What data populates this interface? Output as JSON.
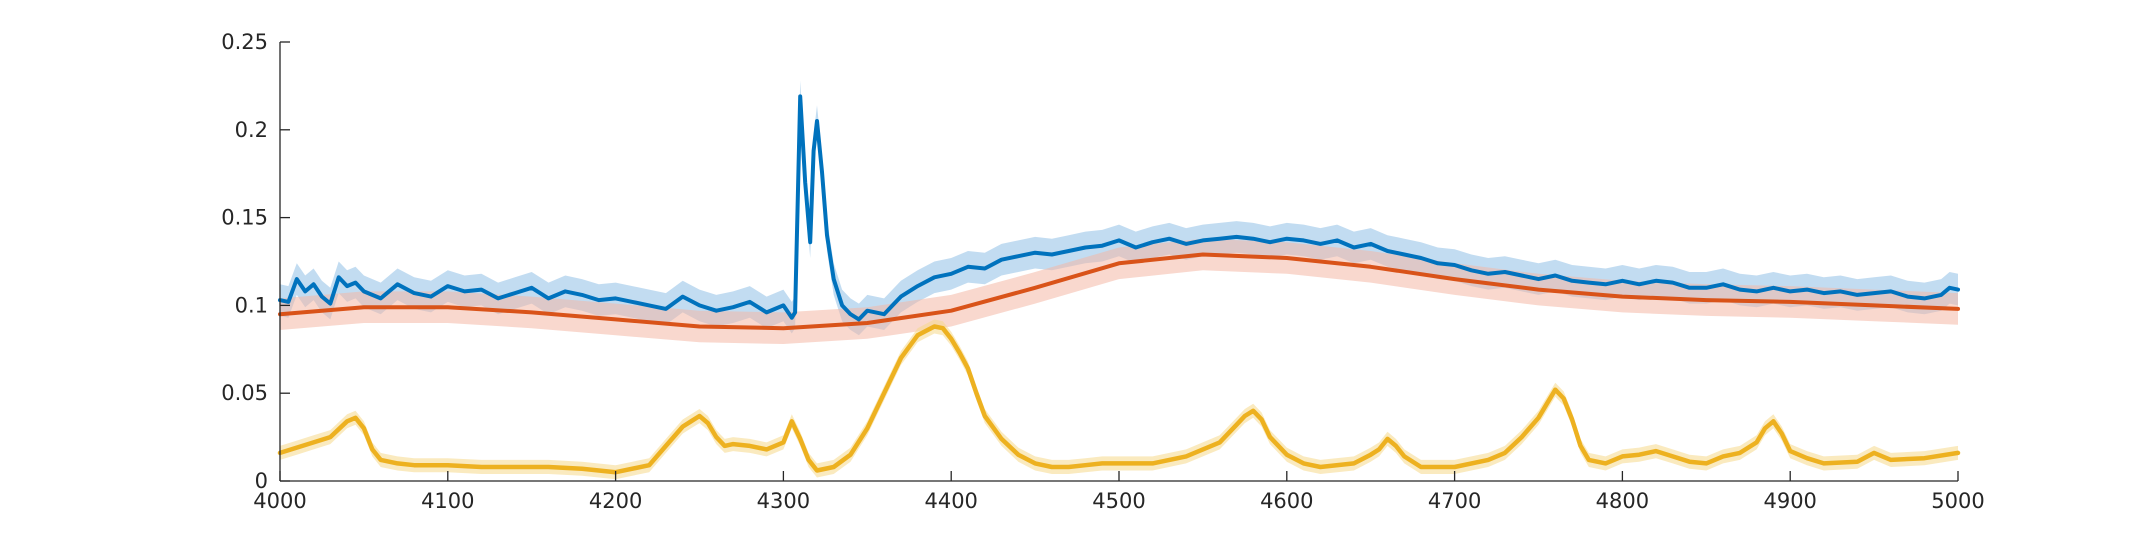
{
  "chart_data": {
    "type": "line",
    "title": "",
    "xlabel": "",
    "ylabel": "",
    "xlim": [
      4000,
      5000
    ],
    "ylim": [
      0,
      0.25
    ],
    "xticks": [
      "4000",
      "4100",
      "4200",
      "4300",
      "4400",
      "4500",
      "4600",
      "4700",
      "4800",
      "4900",
      "5000"
    ],
    "yticks": [
      "0",
      "0.05",
      "0.1",
      "0.15",
      "0.2",
      "0.25"
    ],
    "grid": false,
    "legend": "none",
    "series": [
      {
        "color": "#0072BD",
        "band_color": "#8FBFE6",
        "band_halfwidth": 0.009,
        "x": [
          4000,
          4005,
          4010,
          4015,
          4020,
          4025,
          4030,
          4035,
          4040,
          4045,
          4050,
          4060,
          4070,
          4080,
          4090,
          4100,
          4110,
          4120,
          4130,
          4140,
          4150,
          4160,
          4170,
          4180,
          4190,
          4200,
          4210,
          4220,
          4230,
          4240,
          4250,
          4260,
          4270,
          4280,
          4290,
          4300,
          4305,
          4307,
          4310,
          4313,
          4316,
          4318,
          4320,
          4323,
          4326,
          4330,
          4335,
          4340,
          4345,
          4350,
          4360,
          4370,
          4380,
          4390,
          4400,
          4410,
          4420,
          4430,
          4440,
          4450,
          4460,
          4470,
          4480,
          4490,
          4500,
          4510,
          4520,
          4530,
          4540,
          4550,
          4560,
          4570,
          4580,
          4590,
          4600,
          4610,
          4620,
          4630,
          4640,
          4650,
          4660,
          4670,
          4680,
          4690,
          4700,
          4710,
          4720,
          4730,
          4740,
          4750,
          4760,
          4770,
          4780,
          4790,
          4800,
          4810,
          4820,
          4830,
          4840,
          4850,
          4860,
          4870,
          4880,
          4890,
          4900,
          4910,
          4920,
          4930,
          4940,
          4950,
          4960,
          4970,
          4980,
          4990,
          4995,
          5000
        ],
        "y": [
          0.103,
          0.102,
          0.115,
          0.108,
          0.112,
          0.105,
          0.101,
          0.116,
          0.111,
          0.113,
          0.108,
          0.104,
          0.112,
          0.107,
          0.105,
          0.111,
          0.108,
          0.109,
          0.104,
          0.107,
          0.11,
          0.104,
          0.108,
          0.106,
          0.103,
          0.104,
          0.102,
          0.1,
          0.098,
          0.105,
          0.1,
          0.097,
          0.099,
          0.102,
          0.096,
          0.1,
          0.093,
          0.096,
          0.219,
          0.17,
          0.136,
          0.188,
          0.205,
          0.176,
          0.14,
          0.115,
          0.1,
          0.095,
          0.092,
          0.097,
          0.095,
          0.105,
          0.111,
          0.116,
          0.118,
          0.122,
          0.121,
          0.126,
          0.128,
          0.13,
          0.129,
          0.131,
          0.133,
          0.134,
          0.137,
          0.133,
          0.136,
          0.138,
          0.135,
          0.137,
          0.138,
          0.139,
          0.138,
          0.136,
          0.138,
          0.137,
          0.135,
          0.137,
          0.133,
          0.135,
          0.131,
          0.129,
          0.127,
          0.124,
          0.123,
          0.12,
          0.118,
          0.119,
          0.117,
          0.115,
          0.117,
          0.114,
          0.113,
          0.112,
          0.114,
          0.112,
          0.114,
          0.113,
          0.11,
          0.11,
          0.112,
          0.109,
          0.108,
          0.11,
          0.108,
          0.109,
          0.107,
          0.108,
          0.106,
          0.107,
          0.108,
          0.105,
          0.104,
          0.106,
          0.11,
          0.109
        ]
      },
      {
        "color": "#D95319",
        "band_color": "#F4B8A6",
        "band_halfwidth": 0.009,
        "x": [
          4000,
          4050,
          4100,
          4150,
          4200,
          4250,
          4300,
          4350,
          4400,
          4450,
          4500,
          4550,
          4600,
          4650,
          4700,
          4750,
          4800,
          4850,
          4900,
          4950,
          5000
        ],
        "y": [
          0.095,
          0.099,
          0.099,
          0.096,
          0.092,
          0.088,
          0.087,
          0.09,
          0.097,
          0.11,
          0.124,
          0.129,
          0.127,
          0.122,
          0.115,
          0.109,
          0.105,
          0.103,
          0.102,
          0.1,
          0.098
        ]
      },
      {
        "color": "#EDB120",
        "band_color": "#F6D88A",
        "band_halfwidth": 0.004,
        "x": [
          4000,
          4010,
          4020,
          4030,
          4040,
          4045,
          4050,
          4055,
          4060,
          4070,
          4080,
          4100,
          4120,
          4140,
          4160,
          4180,
          4200,
          4220,
          4230,
          4240,
          4245,
          4250,
          4255,
          4260,
          4265,
          4270,
          4280,
          4290,
          4300,
          4305,
          4310,
          4315,
          4320,
          4330,
          4340,
          4350,
          4360,
          4370,
          4380,
          4390,
          4395,
          4400,
          4405,
          4410,
          4415,
          4420,
          4430,
          4440,
          4450,
          4460,
          4470,
          4480,
          4490,
          4500,
          4520,
          4540,
          4560,
          4570,
          4575,
          4580,
          4585,
          4590,
          4600,
          4610,
          4620,
          4640,
          4650,
          4655,
          4660,
          4665,
          4670,
          4680,
          4700,
          4720,
          4730,
          4740,
          4750,
          4755,
          4760,
          4765,
          4770,
          4775,
          4780,
          4790,
          4800,
          4810,
          4820,
          4830,
          4840,
          4850,
          4860,
          4870,
          4880,
          4885,
          4890,
          4895,
          4900,
          4910,
          4920,
          4940,
          4950,
          4960,
          4980,
          5000
        ],
        "y": [
          0.016,
          0.019,
          0.022,
          0.025,
          0.034,
          0.036,
          0.03,
          0.018,
          0.012,
          0.01,
          0.009,
          0.009,
          0.008,
          0.008,
          0.008,
          0.007,
          0.005,
          0.009,
          0.02,
          0.031,
          0.034,
          0.037,
          0.033,
          0.025,
          0.02,
          0.021,
          0.02,
          0.018,
          0.022,
          0.034,
          0.024,
          0.012,
          0.006,
          0.008,
          0.015,
          0.03,
          0.05,
          0.07,
          0.083,
          0.088,
          0.087,
          0.081,
          0.073,
          0.064,
          0.05,
          0.037,
          0.024,
          0.015,
          0.01,
          0.008,
          0.008,
          0.009,
          0.01,
          0.01,
          0.01,
          0.014,
          0.022,
          0.032,
          0.037,
          0.04,
          0.035,
          0.025,
          0.015,
          0.01,
          0.008,
          0.01,
          0.015,
          0.018,
          0.024,
          0.02,
          0.014,
          0.008,
          0.008,
          0.012,
          0.016,
          0.025,
          0.036,
          0.044,
          0.052,
          0.047,
          0.035,
          0.02,
          0.012,
          0.01,
          0.014,
          0.015,
          0.017,
          0.014,
          0.011,
          0.01,
          0.014,
          0.016,
          0.022,
          0.03,
          0.034,
          0.027,
          0.017,
          0.013,
          0.01,
          0.011,
          0.016,
          0.012,
          0.013,
          0.016
        ]
      }
    ]
  }
}
